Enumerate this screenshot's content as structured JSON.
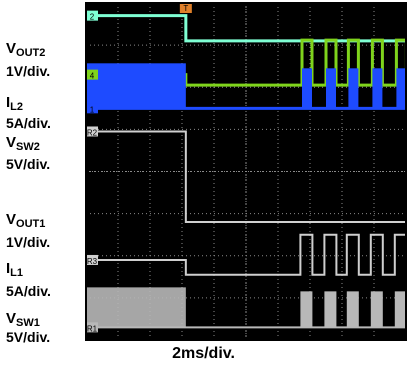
{
  "chart_data": {
    "type": "line",
    "title": "",
    "xlabel": "2ms/div.",
    "x_divisions": 10,
    "time_per_div": "2ms/div.",
    "trigger_marker": "T",
    "colors": {
      "background": "#000000",
      "grid": "#8a8a8a",
      "v_out2": "#7fffd4",
      "i_l2": "#7fd41c",
      "v_sw2": "#1e4bff",
      "v_out1": "#d0d0d0",
      "i_l1": "#cfcfcf",
      "v_sw1": "#b8b8b8",
      "trigger": "#e0802a"
    },
    "series": [
      {
        "key": "v_out2",
        "label_main": "V",
        "label_sub": "OUT2",
        "scale": "1V/div.",
        "channel_marker": "2",
        "description_values": [
          {
            "t_div": 0,
            "level_div": 7.7
          },
          {
            "t_div": 3.1,
            "level_div": 7.7
          },
          {
            "t_div": 3.15,
            "level_div": 7.1
          },
          {
            "t_div": 10,
            "level_div": 7.1
          }
        ]
      },
      {
        "key": "i_l2",
        "label_main": "I",
        "label_sub": "L2",
        "scale": "5A/div.",
        "channel_marker": "4",
        "description_values": [
          {
            "t_div": 0,
            "level_div": 6.3
          },
          {
            "t_div": 3.1,
            "level_div": 6.3
          },
          {
            "t_div": 3.15,
            "level_div": 6.05
          },
          {
            "t_div": 10,
            "level_div": 6.05
          }
        ]
      },
      {
        "key": "v_sw2",
        "label_main": "V",
        "label_sub": "SW2",
        "scale": "5V/div.",
        "channel_marker": "1",
        "description_values": [
          {
            "t_div": 0,
            "level_div": 5.5
          },
          {
            "t_div": 10,
            "level_div": 5.5
          }
        ]
      },
      {
        "key": "v_out1",
        "label_main": "V",
        "label_sub": "OUT1",
        "scale": "1V/div.",
        "channel_marker": "R2",
        "description_values": [
          {
            "t_div": 0,
            "level_div": 4.95
          },
          {
            "t_div": 3.1,
            "level_div": 4.95
          },
          {
            "t_div": 3.15,
            "level_div": 2.8
          },
          {
            "t_div": 10,
            "level_div": 2.8
          }
        ]
      },
      {
        "key": "i_l1",
        "label_main": "I",
        "label_sub": "L1",
        "scale": "5A/div.",
        "channel_marker": "R3",
        "description_values": [
          {
            "t_div": 0,
            "level_div": 1.9
          },
          {
            "t_div": 3.1,
            "level_div": 1.9
          },
          {
            "t_div": 3.15,
            "level_div": 1.55
          },
          {
            "t_div": 10,
            "level_div": 1.55
          }
        ]
      },
      {
        "key": "v_sw1",
        "label_main": "V",
        "label_sub": "SW1",
        "scale": "5V/div.",
        "channel_marker": "R1",
        "description_values": [
          {
            "t_div": 0,
            "level_div": 0.3
          },
          {
            "t_div": 10,
            "level_div": 0.3
          }
        ]
      }
    ]
  }
}
